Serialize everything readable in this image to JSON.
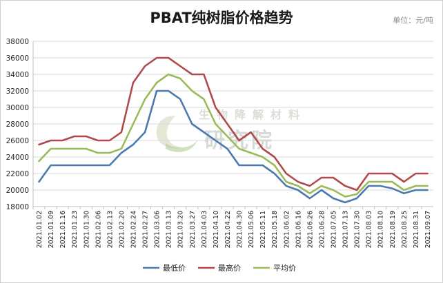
{
  "chart_data": {
    "type": "line",
    "title": "PBAT纯树脂价格趋势",
    "unit_label": "单位：元/吨",
    "watermark": {
      "top": "生物降解材料",
      "bottom": "研究院",
      "colors": [
        "#c9c9a8",
        "#a5c98c"
      ]
    },
    "categories": [
      "2021.01.02",
      "2021.01.09",
      "2021.01.16",
      "2021.01.23",
      "2021.01.30",
      "2021.02.06",
      "2021.02.13",
      "2021.02.20",
      "2021.02.24",
      "2021.02.27",
      "2021.03.06",
      "2021.03.13",
      "2021.03.20",
      "2021.03.27",
      "2021.04.03",
      "2021.04.10",
      "2021.04.22",
      "2021.04.30",
      "2021.05.06",
      "2021.05.11",
      "2021.05.18",
      "2021.06.02",
      "2021.06.16",
      "2021.06.26",
      "2021.06.28",
      "2021.07.05",
      "2021.07.13",
      "2021.07.30",
      "2021.08.03",
      "2021.08.10",
      "2021.08.19",
      "2021.08.25",
      "2021.08.31",
      "2021.09.07"
    ],
    "series": [
      {
        "name": "最低价",
        "color": "#4a7ab0",
        "values": [
          21000,
          23000,
          23000,
          23000,
          23000,
          23000,
          23000,
          24500,
          25500,
          27000,
          32000,
          32000,
          31000,
          28000,
          27000,
          26000,
          25000,
          23000,
          23000,
          23000,
          22000,
          20500,
          20000,
          19000,
          20000,
          19000,
          18500,
          19000,
          20500,
          20500,
          20200,
          19600,
          20000,
          20000
        ]
      },
      {
        "name": "最高价",
        "color": "#b04a4a",
        "values": [
          25500,
          26000,
          26000,
          26500,
          26500,
          26000,
          26000,
          27000,
          33000,
          35000,
          36000,
          36000,
          35000,
          34000,
          34000,
          30000,
          28000,
          26000,
          27000,
          25000,
          24000,
          22000,
          21000,
          20500,
          21500,
          21500,
          20500,
          20000,
          22000,
          22000,
          22000,
          21000,
          22000,
          22000
        ]
      },
      {
        "name": "平均价",
        "color": "#9bbb59",
        "values": [
          23500,
          25000,
          25000,
          25000,
          25000,
          24500,
          24500,
          25000,
          28000,
          31000,
          33000,
          34000,
          33500,
          32000,
          31000,
          28000,
          26500,
          25000,
          24500,
          24000,
          23000,
          21000,
          20500,
          19600,
          20500,
          20000,
          19200,
          19500,
          21000,
          21000,
          21000,
          20000,
          20500,
          20500
        ]
      }
    ],
    "y_ticks": [
      "18000",
      "20000",
      "22000",
      "24000",
      "26000",
      "28000",
      "30000",
      "32000",
      "34000",
      "36000",
      "38000"
    ],
    "ylim": [
      18000,
      38000
    ],
    "grid": "horizontal",
    "legend_position": "bottom-center"
  }
}
